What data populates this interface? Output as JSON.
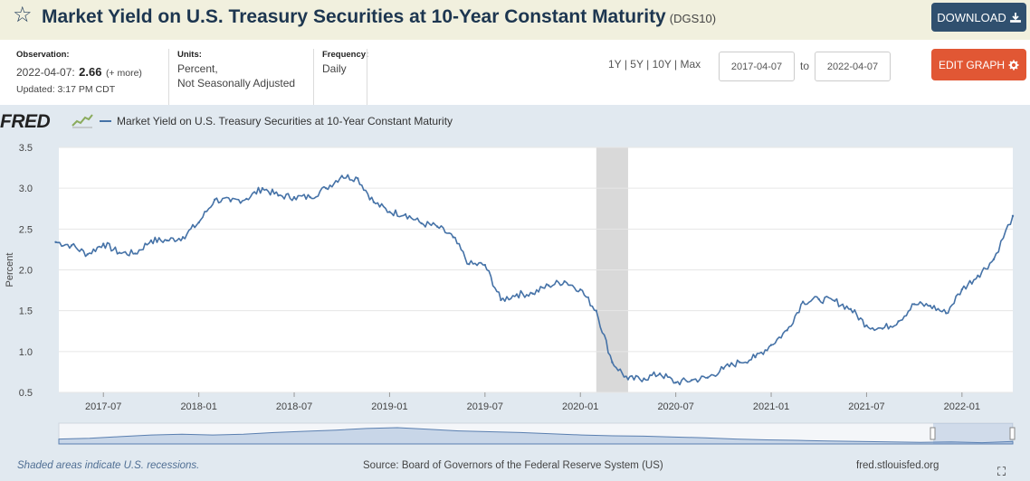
{
  "header": {
    "title": "Market Yield on U.S. Treasury Securities at 10-Year Constant Maturity",
    "series_code": "(DGS10)",
    "download_label": "DOWNLOAD"
  },
  "info": {
    "observation_label": "Observation:",
    "observation_date": "2022-04-07:",
    "observation_value": "2.66",
    "more_label": "(+ more)",
    "updated": "Updated: 3:17 PM CDT",
    "units_label": "Units:",
    "units_line1": "Percent,",
    "units_line2": "Not Seasonally Adjusted",
    "frequency_label": "Frequency:",
    "frequency_value": "Daily"
  },
  "controls": {
    "range_1y": "1Y",
    "range_5y": "5Y",
    "range_10y": "10Y",
    "range_max": "Max",
    "sep": "|",
    "start_date": "2017-04-07",
    "to_label": "to",
    "end_date": "2022-04-07",
    "edit_label": "EDIT GRAPH"
  },
  "legend": {
    "logo": "FRED",
    "series_name": "Market Yield on U.S. Treasury Securities at 10-Year Constant Maturity"
  },
  "footer": {
    "recession_note": "Shaded areas indicate U.S. recessions.",
    "source": "Source: Board of Governors of the Federal Reserve System (US)",
    "site": "fred.stlouisfed.org"
  },
  "colors": {
    "line": "#4572a7",
    "recession": "#d9d9d9",
    "navigator": "#5a7fb0"
  },
  "chart_data": {
    "type": "line",
    "ylabel": "Percent",
    "ylim": [
      0.5,
      3.5
    ],
    "yticks": [
      "3.5",
      "3.0",
      "2.5",
      "2.0",
      "1.5",
      "1.0",
      "0.5"
    ],
    "xticks": [
      "2017-07",
      "2018-01",
      "2018-07",
      "2019-01",
      "2019-07",
      "2020-01",
      "2020-07",
      "2021-01",
      "2021-07",
      "2022-01"
    ],
    "recession": [
      "2020-02",
      "2020-04"
    ],
    "series": [
      {
        "name": "Market Yield on U.S. Treasury Securities at 10-Year Constant Maturity",
        "x": [
          "2017-04",
          "2017-05",
          "2017-06",
          "2017-07",
          "2017-08",
          "2017-09",
          "2017-10",
          "2017-11",
          "2017-12",
          "2018-01",
          "2018-02",
          "2018-03",
          "2018-04",
          "2018-05",
          "2018-06",
          "2018-07",
          "2018-08",
          "2018-09",
          "2018-10",
          "2018-11",
          "2018-12",
          "2019-01",
          "2019-02",
          "2019-03",
          "2019-04",
          "2019-05",
          "2019-06",
          "2019-07",
          "2019-08",
          "2019-09",
          "2019-10",
          "2019-11",
          "2019-12",
          "2020-01",
          "2020-02",
          "2020-03",
          "2020-04",
          "2020-05",
          "2020-06",
          "2020-07",
          "2020-08",
          "2020-09",
          "2020-10",
          "2020-11",
          "2020-12",
          "2021-01",
          "2021-02",
          "2021-03",
          "2021-04",
          "2021-05",
          "2021-06",
          "2021-07",
          "2021-08",
          "2021-09",
          "2021-10",
          "2021-11",
          "2021-12",
          "2022-01",
          "2022-02",
          "2022-03",
          "2022-04"
        ],
        "values": [
          2.34,
          2.3,
          2.19,
          2.32,
          2.21,
          2.2,
          2.36,
          2.36,
          2.4,
          2.58,
          2.86,
          2.84,
          2.87,
          3.0,
          2.91,
          2.89,
          2.89,
          3.0,
          3.15,
          3.12,
          2.83,
          2.71,
          2.68,
          2.57,
          2.53,
          2.4,
          2.07,
          2.06,
          1.63,
          1.7,
          1.71,
          1.81,
          1.86,
          1.76,
          1.5,
          0.87,
          0.66,
          0.67,
          0.73,
          0.62,
          0.65,
          0.68,
          0.79,
          0.87,
          0.93,
          1.08,
          1.26,
          1.61,
          1.64,
          1.62,
          1.52,
          1.32,
          1.28,
          1.37,
          1.58,
          1.56,
          1.47,
          1.76,
          1.93,
          2.13,
          2.66
        ]
      }
    ]
  }
}
